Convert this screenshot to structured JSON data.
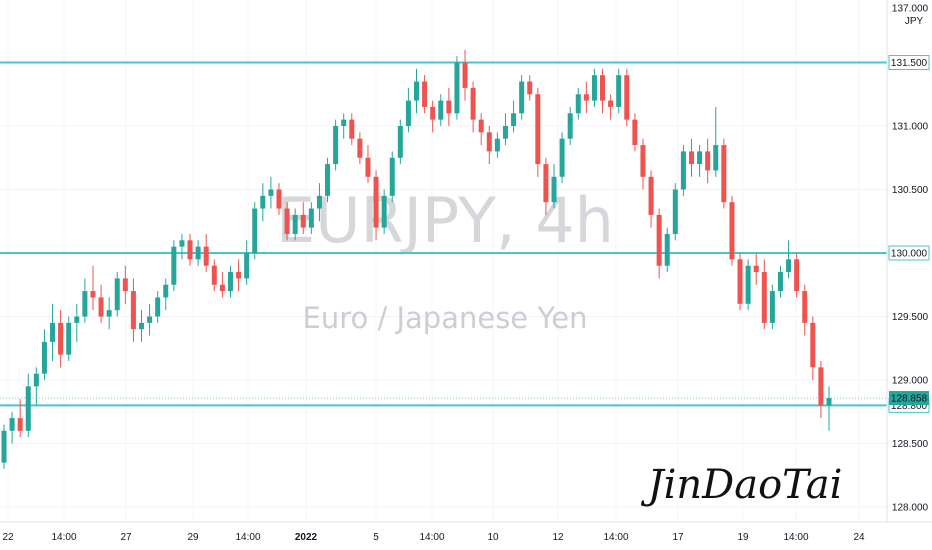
{
  "chart_data": {
    "type": "candlestick",
    "symbol": "EURJPY, 4h",
    "description": "Euro / Japanese Yen",
    "currency": "JPY",
    "ylim": [
      127.9,
      137.0
    ],
    "y_ticks": [
      "128.000",
      "128.500",
      "129.000",
      "129.500",
      "130.000",
      "130.500",
      "131.000",
      "131.500",
      "137.000"
    ],
    "x_ticks": [
      "22",
      "14:00",
      "27",
      "29",
      "14:00",
      "2022",
      "5",
      "14:00",
      "10",
      "12",
      "14:00",
      "17",
      "19",
      "14:00",
      "24"
    ],
    "horizontal_levels": [
      {
        "price": 131.5,
        "label": "131.500"
      },
      {
        "price": 130.0,
        "label": "130.000"
      },
      {
        "price": 128.8,
        "label": "128.800"
      }
    ],
    "last_price": {
      "price": 128.858,
      "label": "128.858"
    },
    "colors": {
      "up": "#26a69a",
      "down": "#ef5350",
      "level": "#4ec3cf",
      "last_tag": "#26a69a"
    },
    "candles_ohlc": [
      [
        128.35,
        128.65,
        128.3,
        128.6
      ],
      [
        128.6,
        128.75,
        128.5,
        128.7
      ],
      [
        128.7,
        128.85,
        128.55,
        128.6
      ],
      [
        128.6,
        129.05,
        128.55,
        128.95
      ],
      [
        128.95,
        129.1,
        128.8,
        129.05
      ],
      [
        129.05,
        129.4,
        129.0,
        129.3
      ],
      [
        129.3,
        129.6,
        129.15,
        129.45
      ],
      [
        129.45,
        129.55,
        129.1,
        129.2
      ],
      [
        129.2,
        129.5,
        129.15,
        129.45
      ],
      [
        129.45,
        129.6,
        129.3,
        129.5
      ],
      [
        129.5,
        129.8,
        129.45,
        129.7
      ],
      [
        129.7,
        129.9,
        129.55,
        129.65
      ],
      [
        129.65,
        129.75,
        129.45,
        129.5
      ],
      [
        129.5,
        129.65,
        129.4,
        129.55
      ],
      [
        129.55,
        129.85,
        129.5,
        129.8
      ],
      [
        129.8,
        129.9,
        129.6,
        129.7
      ],
      [
        129.7,
        129.8,
        129.3,
        129.4
      ],
      [
        129.4,
        129.55,
        129.3,
        129.45
      ],
      [
        129.45,
        129.6,
        129.35,
        129.5
      ],
      [
        129.5,
        129.7,
        129.45,
        129.65
      ],
      [
        129.65,
        129.8,
        129.55,
        129.75
      ],
      [
        129.75,
        130.1,
        129.7,
        130.05
      ],
      [
        130.05,
        130.15,
        129.95,
        130.1
      ],
      [
        130.1,
        130.15,
        129.9,
        129.95
      ],
      [
        129.95,
        130.1,
        129.9,
        130.05
      ],
      [
        130.05,
        130.15,
        129.85,
        129.9
      ],
      [
        129.9,
        129.95,
        129.7,
        129.75
      ],
      [
        129.75,
        129.85,
        129.65,
        129.7
      ],
      [
        129.7,
        129.9,
        129.65,
        129.85
      ],
      [
        129.85,
        129.95,
        129.7,
        129.8
      ],
      [
        129.8,
        130.1,
        129.75,
        130.0
      ],
      [
        130.0,
        130.4,
        129.95,
        130.35
      ],
      [
        130.35,
        130.55,
        130.25,
        130.45
      ],
      [
        130.45,
        130.6,
        130.35,
        130.5
      ],
      [
        130.5,
        130.55,
        130.3,
        130.35
      ],
      [
        130.35,
        130.4,
        130.1,
        130.15
      ],
      [
        130.15,
        130.35,
        130.1,
        130.3
      ],
      [
        130.3,
        130.4,
        130.15,
        130.2
      ],
      [
        130.2,
        130.4,
        130.15,
        130.35
      ],
      [
        130.35,
        130.55,
        130.25,
        130.45
      ],
      [
        130.45,
        130.75,
        130.4,
        130.7
      ],
      [
        130.7,
        131.05,
        130.65,
        131.0
      ],
      [
        131.0,
        131.1,
        130.9,
        131.05
      ],
      [
        131.05,
        131.1,
        130.85,
        130.9
      ],
      [
        130.9,
        130.95,
        130.7,
        130.75
      ],
      [
        130.75,
        130.85,
        130.55,
        130.6
      ],
      [
        130.6,
        130.65,
        130.1,
        130.2
      ],
      [
        130.2,
        130.5,
        130.15,
        130.45
      ],
      [
        130.45,
        130.8,
        130.4,
        130.75
      ],
      [
        130.75,
        131.05,
        130.7,
        131.0
      ],
      [
        131.0,
        131.3,
        130.95,
        131.2
      ],
      [
        131.2,
        131.45,
        131.1,
        131.35
      ],
      [
        131.35,
        131.4,
        131.1,
        131.15
      ],
      [
        131.15,
        131.2,
        130.95,
        131.05
      ],
      [
        131.05,
        131.25,
        131.0,
        131.2
      ],
      [
        131.2,
        131.3,
        131.0,
        131.1
      ],
      [
        131.1,
        131.55,
        131.05,
        131.5
      ],
      [
        131.5,
        131.6,
        131.2,
        131.3
      ],
      [
        131.3,
        131.35,
        130.95,
        131.05
      ],
      [
        131.05,
        131.1,
        130.85,
        130.95
      ],
      [
        130.95,
        131.0,
        130.7,
        130.8
      ],
      [
        130.8,
        130.95,
        130.75,
        130.9
      ],
      [
        130.9,
        131.1,
        130.85,
        131.0
      ],
      [
        131.0,
        131.2,
        130.95,
        131.1
      ],
      [
        131.1,
        131.4,
        131.05,
        131.35
      ],
      [
        131.35,
        131.4,
        131.2,
        131.25
      ],
      [
        131.25,
        131.3,
        130.6,
        130.7
      ],
      [
        130.7,
        130.75,
        130.3,
        130.4
      ],
      [
        130.4,
        130.7,
        130.35,
        130.6
      ],
      [
        130.6,
        130.95,
        130.55,
        130.9
      ],
      [
        130.9,
        131.15,
        130.85,
        131.1
      ],
      [
        131.1,
        131.3,
        131.05,
        131.25
      ],
      [
        131.25,
        131.35,
        131.1,
        131.2
      ],
      [
        131.2,
        131.45,
        131.15,
        131.4
      ],
      [
        131.4,
        131.45,
        131.1,
        131.2
      ],
      [
        131.2,
        131.25,
        131.05,
        131.15
      ],
      [
        131.15,
        131.45,
        131.1,
        131.4
      ],
      [
        131.4,
        131.45,
        131.0,
        131.05
      ],
      [
        131.05,
        131.1,
        130.8,
        130.85
      ],
      [
        130.85,
        130.9,
        130.5,
        130.6
      ],
      [
        130.6,
        130.65,
        130.2,
        130.3
      ],
      [
        130.3,
        130.35,
        129.8,
        129.9
      ],
      [
        129.9,
        130.2,
        129.85,
        130.15
      ],
      [
        130.15,
        130.55,
        130.1,
        130.5
      ],
      [
        130.5,
        130.85,
        130.45,
        130.8
      ],
      [
        130.8,
        130.9,
        130.6,
        130.7
      ],
      [
        130.7,
        130.85,
        130.6,
        130.8
      ],
      [
        130.8,
        130.9,
        130.55,
        130.65
      ],
      [
        130.65,
        131.15,
        130.6,
        130.85
      ],
      [
        130.85,
        130.9,
        130.35,
        130.4
      ],
      [
        130.4,
        130.45,
        129.9,
        129.95
      ],
      [
        129.95,
        130.0,
        129.55,
        129.6
      ],
      [
        129.6,
        129.95,
        129.55,
        129.9
      ],
      [
        129.9,
        130.0,
        129.75,
        129.85
      ],
      [
        129.85,
        129.95,
        129.4,
        129.45
      ],
      [
        129.45,
        129.75,
        129.4,
        129.7
      ],
      [
        129.7,
        129.9,
        129.65,
        129.85
      ],
      [
        129.85,
        130.1,
        129.8,
        129.95
      ],
      [
        129.95,
        130.0,
        129.65,
        129.7
      ],
      [
        129.7,
        129.75,
        129.35,
        129.45
      ],
      [
        129.45,
        129.5,
        129.0,
        129.1
      ],
      [
        129.1,
        129.15,
        128.7,
        128.8
      ],
      [
        128.8,
        128.95,
        128.6,
        128.858
      ]
    ]
  },
  "watermark": {
    "title": "EURJPY, 4h",
    "subtitle": "Euro / Japanese Yen"
  },
  "signature": {
    "text": "JinDaoTai"
  }
}
